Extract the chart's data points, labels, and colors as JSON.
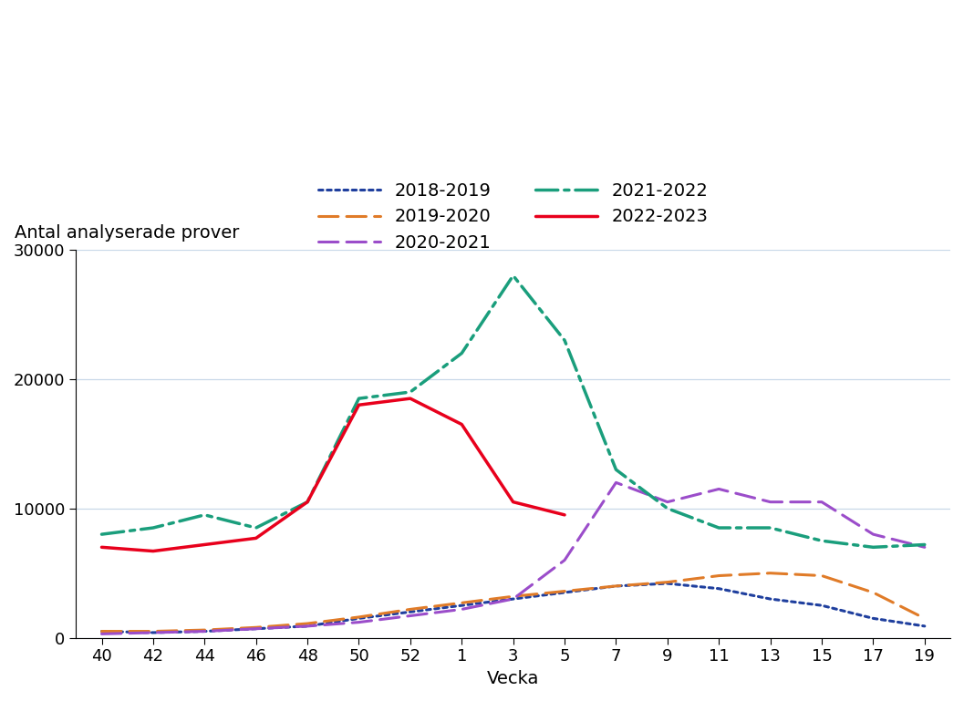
{
  "x_labels": [
    "40",
    "42",
    "44",
    "46",
    "48",
    "50",
    "52",
    "1",
    "3",
    "5",
    "7",
    "9",
    "11",
    "13",
    "15",
    "17",
    "19"
  ],
  "x_positions": [
    0,
    1,
    2,
    3,
    4,
    5,
    6,
    7,
    8,
    9,
    10,
    11,
    12,
    13,
    14,
    15,
    16
  ],
  "series": {
    "2018-2019": {
      "color": "#1f3f9e",
      "linestyle": "dotted",
      "linewidth": 2.2,
      "values": [
        500,
        400,
        500,
        700,
        900,
        1500,
        2000,
        2500,
        3000,
        3500,
        4000,
        4200,
        3800,
        3000,
        2500,
        1500,
        900
      ]
    },
    "2019-2020": {
      "color": "#e07b28",
      "linestyle": "dashed",
      "linewidth": 2.2,
      "values": [
        500,
        500,
        600,
        800,
        1100,
        1600,
        2200,
        2700,
        3200,
        3600,
        4000,
        4300,
        4800,
        5000,
        4800,
        3500,
        1500
      ]
    },
    "2020-2021": {
      "color": "#9b4dca",
      "linestyle": "dashed",
      "linewidth": 2.2,
      "values": [
        300,
        400,
        500,
        700,
        900,
        1200,
        1700,
        2200,
        3000,
        6000,
        12000,
        10500,
        11500,
        10500,
        10500,
        8000,
        7000
      ]
    },
    "2021-2022": {
      "color": "#1a9e7c",
      "linestyle": "dashdot",
      "linewidth": 2.5,
      "values": [
        8000,
        8500,
        9500,
        8500,
        10500,
        18500,
        19000,
        22000,
        28000,
        23000,
        13000,
        10000,
        8500,
        8500,
        7500,
        7000,
        7200
      ]
    },
    "2022-2023": {
      "color": "#e8001c",
      "linestyle": "solid",
      "linewidth": 2.5,
      "values": [
        7000,
        6700,
        7200,
        7700,
        10500,
        18000,
        18500,
        16500,
        10500,
        9500,
        null,
        null,
        null,
        null,
        null,
        null,
        null
      ]
    }
  },
  "legend_order": [
    "2018-2019",
    "2019-2020",
    "2020-2021",
    "2021-2022",
    "2022-2023"
  ],
  "ylabel": "Antal analyserade prover",
  "xlabel": "Vecka",
  "ylim": [
    0,
    30000
  ],
  "yticks": [
    0,
    10000,
    20000,
    30000
  ],
  "ytick_labels": [
    "0",
    "10000",
    "20000",
    "30000"
  ],
  "background_color": "#ffffff",
  "grid_color": "#c8d8e8",
  "label_fontsize": 14,
  "tick_fontsize": 13
}
